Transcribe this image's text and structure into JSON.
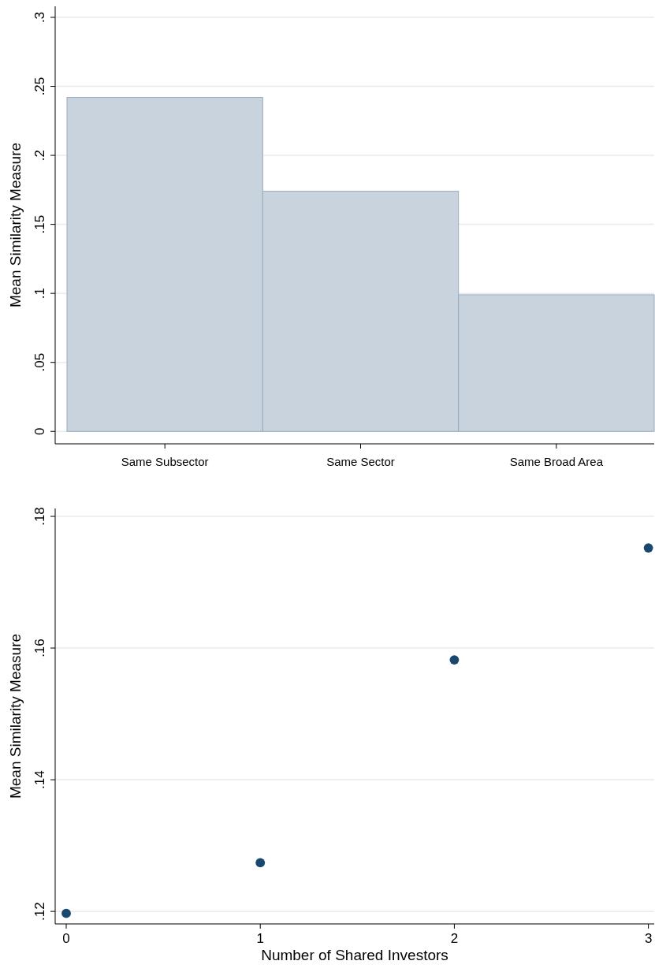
{
  "chart_data": [
    {
      "type": "bar",
      "ylabel": "Mean Similarity Measure",
      "categories": [
        "Same Subsector",
        "Same Sector",
        "Same Broad Area"
      ],
      "values": [
        0.242,
        0.174,
        0.099
      ],
      "color": "#c8d3de",
      "ylim": [
        -0.009,
        0.308
      ],
      "yticks": [
        {
          "value": 0,
          "label": "0"
        },
        {
          "value": 0.05,
          "label": ".05"
        },
        {
          "value": 0.1,
          "label": ".1"
        },
        {
          "value": 0.15,
          "label": ".15"
        },
        {
          "value": 0.2,
          "label": ".2"
        },
        {
          "value": 0.25,
          "label": ".25"
        },
        {
          "value": 0.3,
          "label": ".3"
        }
      ],
      "grid": "y"
    },
    {
      "type": "scatter",
      "ylabel": "Mean Similarity Measure",
      "xlabel": "Number of Shared Investors",
      "x": [
        0,
        1,
        2,
        3
      ],
      "values": [
        0.1197,
        0.1274,
        0.1582,
        0.1752
      ],
      "color": "#1a476f",
      "marker": "circle",
      "xlim": [
        -0.057,
        3.03
      ],
      "xticks": [
        0,
        1,
        2,
        3
      ],
      "ylim": [
        0.1181,
        0.1812
      ],
      "yticks": [
        {
          "value": 0.12,
          "label": ".12"
        },
        {
          "value": 0.14,
          "label": ".14"
        },
        {
          "value": 0.16,
          "label": ".16"
        },
        {
          "value": 0.18,
          "label": ".18"
        }
      ],
      "grid": "y"
    }
  ]
}
